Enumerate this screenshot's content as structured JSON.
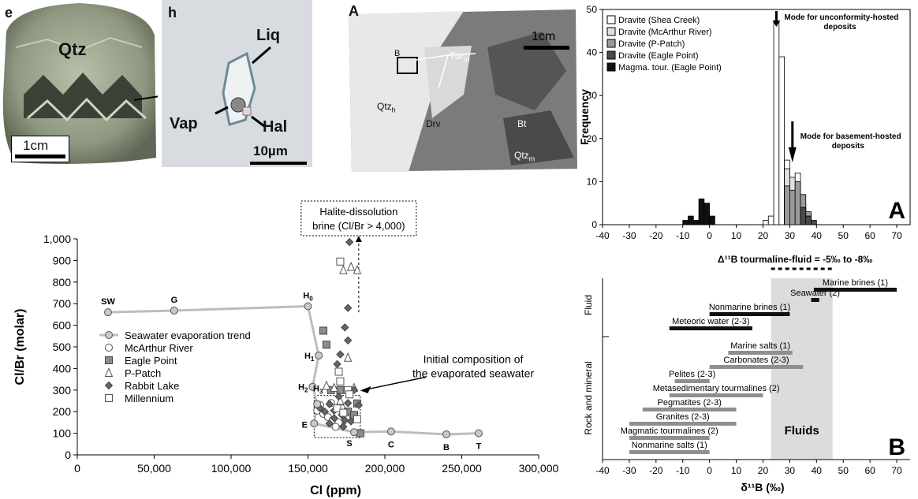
{
  "photo_e": {
    "panel_letter": "e",
    "mineral_label": "Qtz",
    "scale": "1cm"
  },
  "photo_h": {
    "panel_letter": "h",
    "labels": {
      "liq": "Liq",
      "vap": "Vap",
      "hal": "Hal"
    },
    "scale": "10µm"
  },
  "photo_a": {
    "panel_letter": "A",
    "scale": "1cm",
    "labels": {
      "box": "B",
      "tur": "Tur",
      "tur_sub": "m",
      "qtzh": "Qtz",
      "qtzh_sub": "h",
      "drv": "Drv",
      "bt": "Bt",
      "qtzm": "Qtz",
      "qtzm_sub": "m"
    }
  },
  "clbr_chart": {
    "chart_data": {
      "type": "scatter",
      "xlabel": "Cl (ppm)",
      "ylabel": "Cl/Br (molar)",
      "xlim": [
        0,
        300000
      ],
      "ylim": [
        0,
        1000
      ],
      "xticks": [
        "0",
        "50,000",
        "100,000",
        "150,000",
        "200,000",
        "250,000",
        "300,000"
      ],
      "yticks": [
        "0",
        "100",
        "200",
        "300",
        "400",
        "500",
        "600",
        "700",
        "800",
        "900",
        "1,000"
      ],
      "trend": {
        "name": "Seawater evaporation trend",
        "points": [
          {
            "x": 20000,
            "y": 660,
            "label": "SW"
          },
          {
            "x": 63000,
            "y": 668,
            "label": "G"
          },
          {
            "x": 150000,
            "y": 688,
            "label": "H0"
          },
          {
            "x": 157000,
            "y": 460,
            "label": "H1"
          },
          {
            "x": 153000,
            "y": 315,
            "label": "H2"
          },
          {
            "x": 156000,
            "y": 235,
            "label": "H3"
          },
          {
            "x": 154000,
            "y": 145,
            "label": "E"
          },
          {
            "x": 180000,
            "y": 105,
            "label": "S"
          },
          {
            "x": 204000,
            "y": 108,
            "label": "C"
          },
          {
            "x": 240000,
            "y": 95,
            "label": "B"
          },
          {
            "x": 261000,
            "y": 100,
            "label": "T"
          }
        ]
      },
      "series": [
        {
          "name": "McArthur River",
          "points": [
            [
              156000,
              205
            ],
            [
              160000,
              190
            ],
            [
              163000,
              175
            ],
            [
              166000,
              160
            ],
            [
              170000,
              150
            ],
            [
              158000,
              230
            ],
            [
              172000,
              215
            ],
            [
              165000,
              240
            ],
            [
              175000,
              170
            ],
            [
              168000,
              130
            ]
          ]
        },
        {
          "name": "Eagle Point",
          "points": [
            [
              160000,
              575
            ],
            [
              162000,
              510
            ],
            [
              165000,
              300
            ],
            [
              171000,
              300
            ],
            [
              176000,
              200
            ],
            [
              180000,
              185
            ],
            [
              182000,
              238
            ],
            [
              184000,
              100
            ]
          ]
        },
        {
          "name": "P-Patch",
          "points": [
            [
              162000,
              320
            ],
            [
              167000,
              310
            ],
            [
              171000,
              250
            ],
            [
              176000,
              450
            ],
            [
              178000,
              870
            ],
            [
              182000,
              855
            ],
            [
              173000,
              855
            ],
            [
              180000,
              310
            ]
          ]
        },
        {
          "name": "Rabbit Lake",
          "points": [
            [
              158000,
              215
            ],
            [
              161000,
              200
            ],
            [
              164000,
              235
            ],
            [
              167000,
              205
            ],
            [
              170000,
              270
            ],
            [
              172000,
              185
            ],
            [
              174000,
              160
            ],
            [
              176000,
              680
            ],
            [
              176000,
              530
            ],
            [
              174000,
              590
            ],
            [
              169000,
              420
            ],
            [
              171000,
              465
            ],
            [
              177000,
              985
            ],
            [
              180000,
              300
            ],
            [
              178000,
              155
            ],
            [
              173000,
              130
            ],
            [
              164000,
              145
            ],
            [
              167000,
              170
            ],
            [
              183000,
              230
            ],
            [
              176000,
              240
            ]
          ]
        },
        {
          "name": "Millennium",
          "points": [
            [
              171000,
              895
            ],
            [
              170000,
              385
            ],
            [
              171000,
              340
            ],
            [
              176000,
              300
            ],
            [
              177000,
              280
            ],
            [
              182000,
              165
            ],
            [
              169000,
              215
            ],
            [
              173000,
              195
            ]
          ]
        }
      ],
      "annotations": [
        "Halite-dissolution brine (Cl/Br > 4,000)",
        "Initial composition of the evaporated seawater"
      ],
      "legend_position": "left"
    }
  },
  "hist_chart": {
    "panel_letter": "A",
    "annotations": {
      "mode_unconf": "Mode for unconformity-hosted deposits",
      "mode_base": "Mode for basement-hosted deposits"
    },
    "chart_data": {
      "type": "bar",
      "ylabel": "Frequency",
      "xlim": [
        -40,
        75
      ],
      "ylim": [
        0,
        50
      ],
      "xticks": [
        "-40",
        "-30",
        "-20",
        "-10",
        "0",
        "10",
        "20",
        "30",
        "40",
        "50",
        "60",
        "70"
      ],
      "yticks": [
        "0",
        "10",
        "20",
        "30",
        "40",
        "50"
      ],
      "bin_width": 2,
      "series": [
        {
          "name": "Dravite (Shea Creek)",
          "bins": [
            [
              20,
              1
            ],
            [
              22,
              2
            ],
            [
              24,
              47
            ],
            [
              26,
              39
            ],
            [
              28,
              15
            ],
            [
              30,
              10
            ],
            [
              32,
              12
            ],
            [
              34,
              5
            ],
            [
              36,
              2
            ]
          ]
        },
        {
          "name": "Dravite (McArthur River)",
          "bins": [
            [
              28,
              13
            ],
            [
              30,
              11
            ]
          ]
        },
        {
          "name": "Dravite (P-Patch)",
          "bins": [
            [
              28,
              9
            ],
            [
              30,
              8
            ],
            [
              32,
              10
            ],
            [
              34,
              7
            ],
            [
              36,
              3
            ]
          ]
        },
        {
          "name": "Dravite (Eagle Point)",
          "bins": [
            [
              34,
              4
            ],
            [
              36,
              2
            ],
            [
              38,
              1
            ]
          ]
        },
        {
          "name": "Magma. tour. (Eagle Point)",
          "bins": [
            [
              -10,
              1
            ],
            [
              -8,
              2
            ],
            [
              -6,
              1
            ],
            [
              -4,
              6
            ],
            [
              -2,
              5
            ],
            [
              0,
              2
            ]
          ]
        }
      ]
    }
  },
  "ranges_chart": {
    "panel_letter": "B",
    "delta_label": "Δ¹¹B tourmaline-fluid = -5‰ to -8‰",
    "fluids_label": "Fluids",
    "category_fluid": "Fluid",
    "category_rock": "Rock and mineral",
    "chart_data": {
      "type": "bar",
      "xlabel": "δ¹¹B (‰)",
      "xlim": [
        -40,
        75
      ],
      "xticks": [
        "-40",
        "-30",
        "-20",
        "-10",
        "0",
        "10",
        "20",
        "30",
        "40",
        "50",
        "60",
        "70"
      ],
      "shaded_range": [
        23,
        46
      ],
      "ranges": [
        {
          "label": "Marine brines (1)",
          "min": 39,
          "max": 70,
          "group": "fluid"
        },
        {
          "label": "Seawater (2)",
          "min": 38,
          "max": 41,
          "group": "fluid"
        },
        {
          "label": "Nonmarine brines (1)",
          "min": 0,
          "max": 30,
          "group": "fluid"
        },
        {
          "label": "Meteoric water (2-3)",
          "min": -15,
          "max": 16,
          "group": "fluid"
        },
        {
          "label": "Marine salts (1)",
          "min": 7,
          "max": 31,
          "group": "rock"
        },
        {
          "label": "Carbonates (2-3)",
          "min": 0,
          "max": 35,
          "group": "rock"
        },
        {
          "label": "Pelites (2-3)",
          "min": -13,
          "max": 0,
          "group": "rock"
        },
        {
          "label": "Metasedimentary tourmalines (2)",
          "min": -15,
          "max": 20,
          "group": "rock"
        },
        {
          "label": "Pegmatites (2-3)",
          "min": -25,
          "max": 10,
          "group": "rock"
        },
        {
          "label": "Granites (2-3)",
          "min": -30,
          "max": 10,
          "group": "rock"
        },
        {
          "label": "Magmatic tourmalines (2)",
          "min": -30,
          "max": 0,
          "group": "rock"
        },
        {
          "label": "Nonmarine salts (1)",
          "min": -30,
          "max": 0,
          "group": "rock"
        }
      ]
    }
  },
  "colors": {
    "trend": "#bdbdbd",
    "marker_fill_gray": "#8c8c8c",
    "shade": "#dcdcdc",
    "bar_fluid": "#111111",
    "bar_rock": "#8f8f8f"
  }
}
